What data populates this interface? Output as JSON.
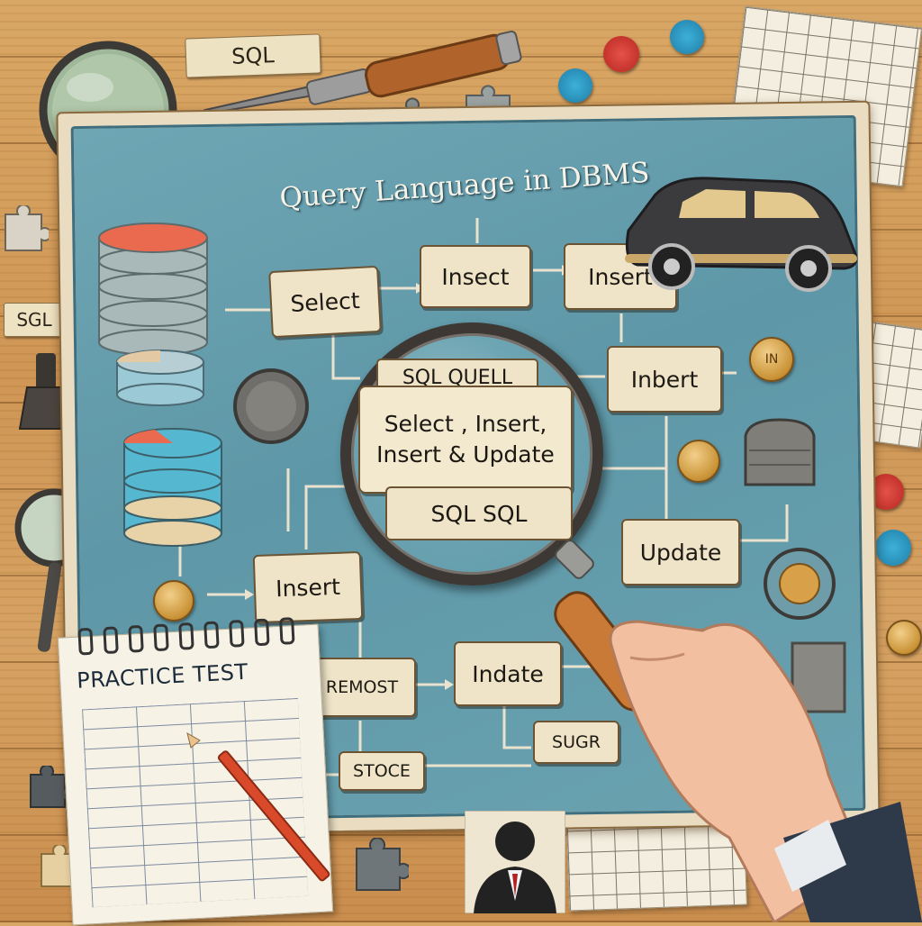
{
  "board": {
    "title": "Query Language in DBMS",
    "cards": {
      "select": "Select",
      "insect": "Insect",
      "insert_top": "Insert",
      "inbert": "Inbert",
      "update": "Update",
      "insert_left": "Insert",
      "indate": "Indate",
      "remost": "REMOST",
      "stoce": "STOCE",
      "sugr": "SUGR"
    },
    "lens": {
      "title": "SQL QUELL",
      "line1": "Select , Insert,",
      "line2": "Insert & Update",
      "sub": "SQL SQL"
    },
    "coin_label": "IN"
  },
  "desk": {
    "tag_top": "SQL",
    "tag_left": "SGL"
  },
  "notebook": {
    "title": "PRACTICE TEST"
  },
  "colors": {
    "board": "#6fa6b4",
    "card": "#efe4c8",
    "wood": "#d9a765",
    "cap_red": "#d8362f",
    "cap_blue": "#2f9bc7"
  },
  "icons": [
    "magnifying-glass-icon",
    "database-stack-icon",
    "car-icon",
    "pencil-icon",
    "puzzle-piece-icon",
    "person-silhouette-icon",
    "brush-icon",
    "coin-icon"
  ]
}
